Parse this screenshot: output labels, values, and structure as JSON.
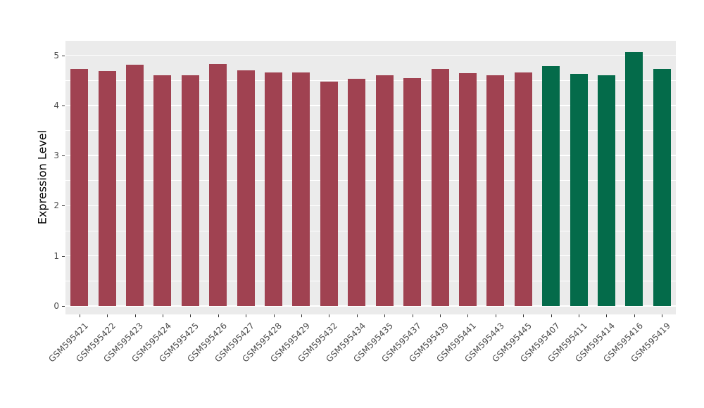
{
  "chart_data": {
    "type": "bar",
    "title": "",
    "xlabel": "",
    "ylabel": "Expression Level",
    "ylim": [
      0,
      5.06
    ],
    "panel_range": [
      -0.17,
      5.29
    ],
    "yticks": [
      0,
      1,
      2,
      3,
      4,
      5
    ],
    "yticks_minor": [
      0.5,
      1.5,
      2.5,
      3.5,
      4.5
    ],
    "grid": "on",
    "legend_position": "none",
    "categories": [
      "GSM595421",
      "GSM595422",
      "GSM595423",
      "GSM595424",
      "GSM595425",
      "GSM595426",
      "GSM595427",
      "GSM595428",
      "GSM595429",
      "GSM595432",
      "GSM595434",
      "GSM595435",
      "GSM595437",
      "GSM595439",
      "GSM595441",
      "GSM595443",
      "GSM595445",
      "GSM595407",
      "GSM595411",
      "GSM595414",
      "GSM595416",
      "GSM595419"
    ],
    "values": [
      4.73,
      4.68,
      4.81,
      4.6,
      4.6,
      4.83,
      4.7,
      4.66,
      4.66,
      4.47,
      4.53,
      4.6,
      4.54,
      4.73,
      4.64,
      4.6,
      4.66,
      4.78,
      4.63,
      4.6,
      5.06,
      4.73
    ],
    "bar_groups": [
      "group1",
      "group1",
      "group1",
      "group1",
      "group1",
      "group1",
      "group1",
      "group1",
      "group1",
      "group1",
      "group1",
      "group1",
      "group1",
      "group1",
      "group1",
      "group1",
      "group1",
      "group2",
      "group2",
      "group2",
      "group2",
      "group2"
    ],
    "palette": {
      "group1": "#A04251",
      "group2": "#046B4A"
    },
    "colors": {
      "panel_background": "#EBEBEB",
      "gridline": "#FFFFFF",
      "axis_text": "#4D4D4D",
      "axis_title": "#000000",
      "tick_mark": "#333333",
      "page_background": "#FFFFFF"
    }
  }
}
